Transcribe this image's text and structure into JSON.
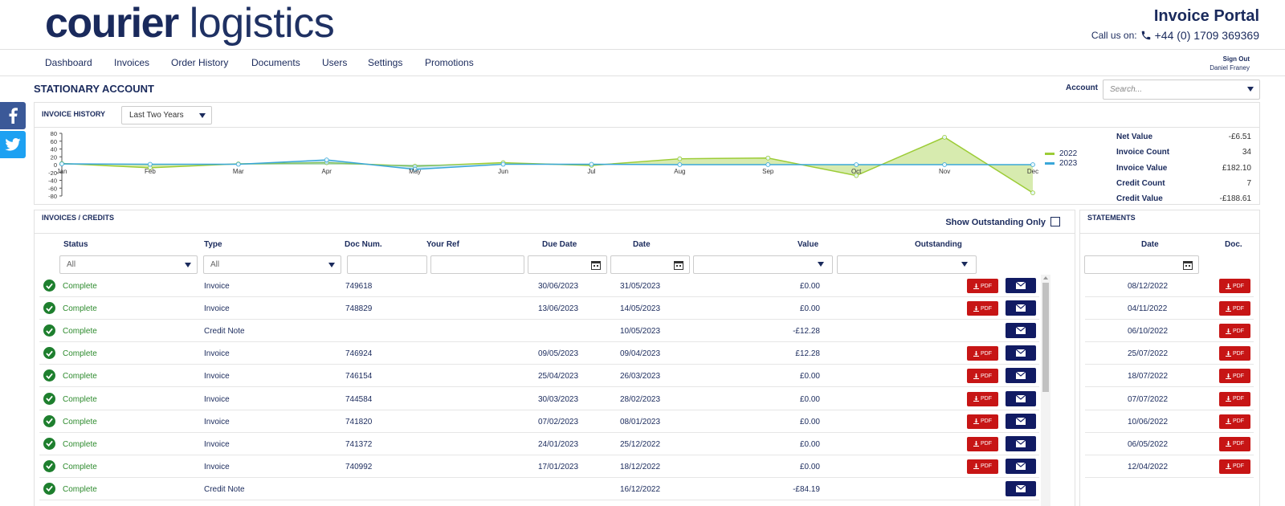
{
  "brand": {
    "logo_bold": "courier",
    "logo_light": "logistics"
  },
  "header": {
    "portal_title": "Invoice Portal",
    "call_label": "Call us on:",
    "phone": "+44 (0) 1709 369369"
  },
  "nav": {
    "items": [
      "Dashboard",
      "Invoices",
      "Order History",
      "Documents",
      "Users",
      "Settings",
      "Promotions"
    ],
    "sign_out": "Sign Out",
    "user": "Daniel Franey"
  },
  "page": {
    "title": "STATIONARY ACCOUNT",
    "account_label": "Account",
    "account_placeholder": "Search..."
  },
  "history": {
    "title": "INVOICE HISTORY",
    "period": "Last Two Years",
    "stats": [
      {
        "label": "Net Value",
        "value": "-£6.51"
      },
      {
        "label": "Invoice Count",
        "value": "34"
      },
      {
        "label": "Invoice Value",
        "value": "£182.10"
      },
      {
        "label": "Credit Count",
        "value": "7"
      },
      {
        "label": "Credit Value",
        "value": "-£188.61"
      }
    ]
  },
  "chart_data": {
    "type": "area",
    "categories": [
      "Jan",
      "Feb",
      "Mar",
      "Apr",
      "May",
      "Jun",
      "Jul",
      "Aug",
      "Sep",
      "Oct",
      "Nov",
      "Dec"
    ],
    "series": [
      {
        "name": "2022",
        "values": [
          3,
          -8,
          2,
          5,
          -4,
          5,
          -2,
          15,
          17,
          -28,
          70,
          -72
        ],
        "color": "#9ccc36"
      },
      {
        "name": "2023",
        "values": [
          2,
          1,
          1,
          12,
          -12,
          1,
          1,
          0,
          0,
          0,
          0,
          0
        ],
        "color": "#3aa7d9"
      }
    ],
    "yticks": [
      80,
      60,
      40,
      20,
      0,
      -20,
      -40,
      -60,
      -80
    ],
    "ylim": [
      -80,
      80
    ],
    "legend": "right"
  },
  "invoices": {
    "title": "INVOICES / CREDITS",
    "show_outstanding": "Show Outstanding Only",
    "columns": [
      "Status",
      "Type",
      "Doc Num.",
      "Your Ref",
      "Due Date",
      "Date",
      "Value",
      "Outstanding"
    ],
    "filter_status": "All",
    "filter_type": "All",
    "pdf_label": "PDF",
    "rows": [
      {
        "status": "Complete",
        "type": "Invoice",
        "doc": "749618",
        "due": "30/06/2023",
        "date": "31/05/2023",
        "value": "£0.00",
        "pdf": true
      },
      {
        "status": "Complete",
        "type": "Invoice",
        "doc": "748829",
        "due": "13/06/2023",
        "date": "14/05/2023",
        "value": "£0.00",
        "pdf": true
      },
      {
        "status": "Complete",
        "type": "Credit Note",
        "doc": "",
        "due": "",
        "date": "10/05/2023",
        "value": "-£12.28",
        "pdf": false
      },
      {
        "status": "Complete",
        "type": "Invoice",
        "doc": "746924",
        "due": "09/05/2023",
        "date": "09/04/2023",
        "value": "£12.28",
        "pdf": true
      },
      {
        "status": "Complete",
        "type": "Invoice",
        "doc": "746154",
        "due": "25/04/2023",
        "date": "26/03/2023",
        "value": "£0.00",
        "pdf": true
      },
      {
        "status": "Complete",
        "type": "Invoice",
        "doc": "744584",
        "due": "30/03/2023",
        "date": "28/02/2023",
        "value": "£0.00",
        "pdf": true
      },
      {
        "status": "Complete",
        "type": "Invoice",
        "doc": "741820",
        "due": "07/02/2023",
        "date": "08/01/2023",
        "value": "£0.00",
        "pdf": true
      },
      {
        "status": "Complete",
        "type": "Invoice",
        "doc": "741372",
        "due": "24/01/2023",
        "date": "25/12/2022",
        "value": "£0.00",
        "pdf": true
      },
      {
        "status": "Complete",
        "type": "Invoice",
        "doc": "740992",
        "due": "17/01/2023",
        "date": "18/12/2022",
        "value": "£0.00",
        "pdf": true
      },
      {
        "status": "Complete",
        "type": "Credit Note",
        "doc": "",
        "due": "",
        "date": "16/12/2022",
        "value": "-£84.19",
        "pdf": false
      }
    ]
  },
  "statements": {
    "title": "STATEMENTS",
    "col_date": "Date",
    "col_doc": "Doc.",
    "rows": [
      "08/12/2022",
      "04/11/2022",
      "06/10/2022",
      "25/07/2022",
      "18/07/2022",
      "07/07/2022",
      "10/06/2022",
      "06/05/2022",
      "12/04/2022"
    ]
  }
}
